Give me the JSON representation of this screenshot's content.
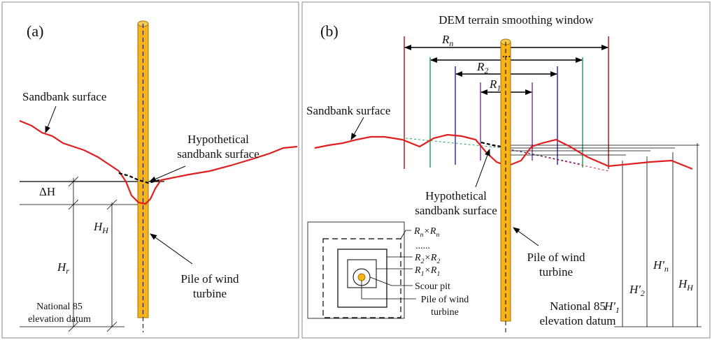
{
  "panel_a": {
    "label": "(a)",
    "sandbank_surface": "Sandbank surface",
    "hypothetical": [
      "Hypothetical",
      "sandbank surface"
    ],
    "delta_h": "ΔH",
    "h_h": {
      "parts": [
        "H",
        "H"
      ]
    },
    "h_r": {
      "parts": [
        "H",
        "r"
      ]
    },
    "pile": [
      "Pile of wind",
      "turbine"
    ],
    "datum": [
      "National 85",
      "elevation datum"
    ]
  },
  "panel_b": {
    "label": "(b)",
    "window_title": "DEM terrain smoothing window",
    "r_n": {
      "parts": [
        "R",
        "n"
      ]
    },
    "ellipsis": "...",
    "r_2": {
      "parts": [
        "R",
        "2"
      ]
    },
    "r_1": {
      "parts": [
        "R",
        "1"
      ]
    },
    "sandbank_surface": "Sandbank surface",
    "hypothetical": [
      "Hypothetical",
      "sandbank surface"
    ],
    "pile": [
      "Pile of wind",
      "turbine"
    ],
    "datum": [
      "National 85",
      "elevation datum"
    ],
    "h1": {
      "parts": [
        "H'",
        "1"
      ]
    },
    "h2": {
      "parts": [
        "H'",
        "2"
      ]
    },
    "hn": {
      "parts": [
        "H'",
        "n"
      ]
    },
    "hh": {
      "parts": [
        "H",
        "H"
      ]
    },
    "legend": {
      "rn_square": {
        "parts": [
          "R",
          "n",
          "×R",
          "n"
        ]
      },
      "dots": "......",
      "r2_square": {
        "parts": [
          "R",
          "2",
          "×R",
          "2"
        ]
      },
      "r1_square": {
        "parts": [
          "R",
          "1",
          "×R",
          "1"
        ]
      },
      "scour_pit": "Scour pit",
      "pile": [
        "Pile of wind",
        "turbine"
      ]
    }
  }
}
